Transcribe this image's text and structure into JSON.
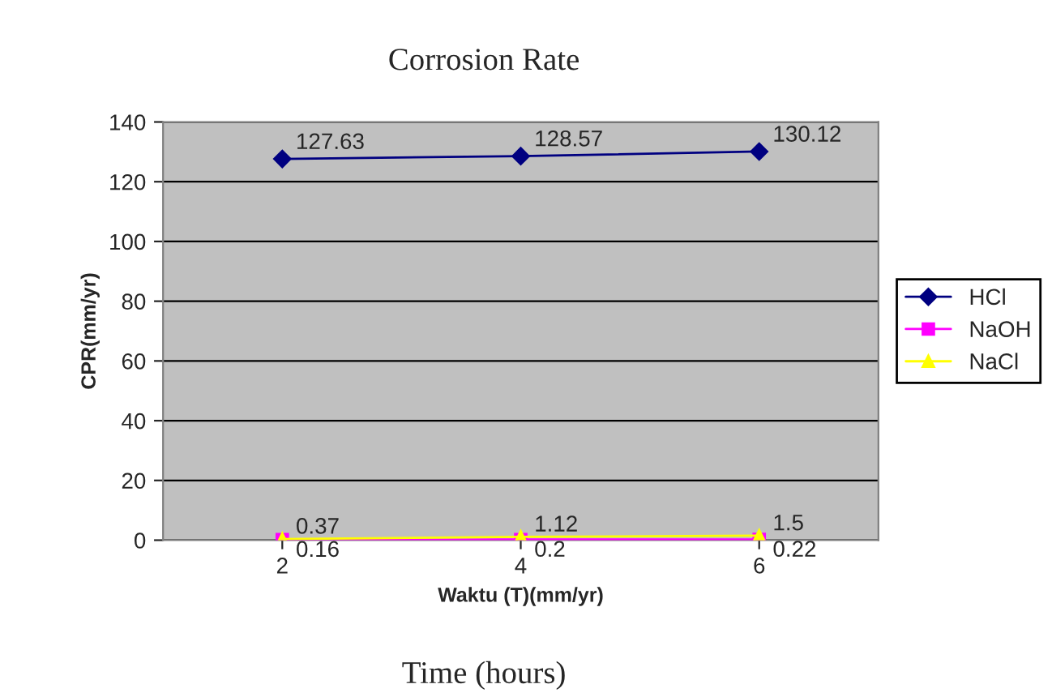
{
  "chart_data": {
    "type": "line",
    "title": "Corrosion Rate",
    "xlabel": "Waktu (T)(mm/yr)",
    "ylabel": "CPR(mm/yr)",
    "categories": [
      "2",
      "4",
      "6"
    ],
    "series": [
      {
        "name": "HCl",
        "color": "#000080",
        "marker": "diamond",
        "values": [
          127.63,
          128.57,
          130.12
        ]
      },
      {
        "name": "NaOH",
        "color": "#ff00ff",
        "marker": "square",
        "values": [
          0.16,
          0.2,
          0.22
        ]
      },
      {
        "name": "NaCl",
        "color": "#ffff00",
        "marker": "triangle",
        "values": [
          0.37,
          1.12,
          1.5
        ]
      }
    ],
    "ylim": [
      0,
      140
    ],
    "yticks": [
      0,
      20,
      40,
      60,
      80,
      100,
      120,
      140
    ],
    "grid": "y",
    "legend": "right",
    "data_labels": true,
    "annotations": [
      "Time (hours)"
    ]
  }
}
